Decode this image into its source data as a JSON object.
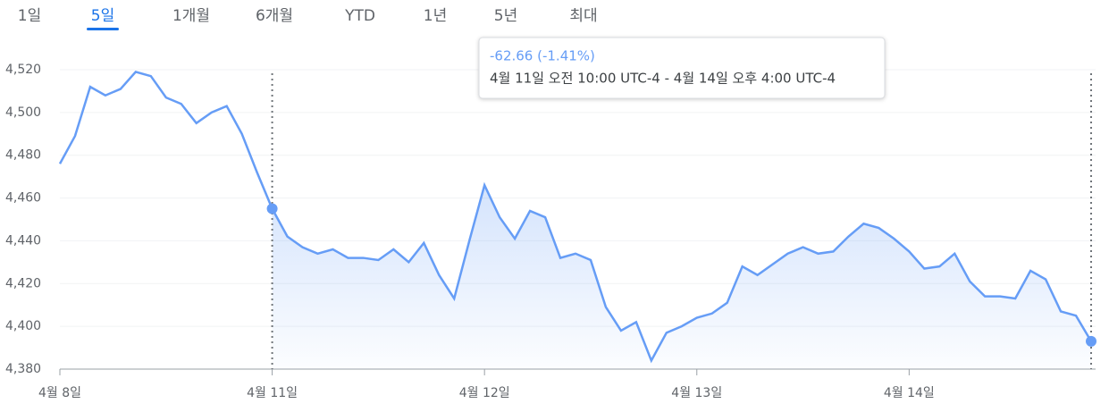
{
  "tabs": [
    "1일",
    "5일",
    "1개월",
    "6개월",
    "YTD",
    "1년",
    "5년",
    "최대"
  ],
  "selected_tab": 1,
  "chart_data": {
    "type": "line",
    "color": "#669df6",
    "annotation": {
      "change": "-62.66 (-1.41%)",
      "range": "4월 11일 오전 10:00 UTC-4 - 4월 14일 오후 4:00 UTC-4"
    },
    "highlight_range": [
      14,
      68
    ],
    "categories": [
      "4월 8일",
      null,
      null,
      null,
      null,
      null,
      null,
      null,
      null,
      null,
      null,
      null,
      null,
      null,
      "4월 11일",
      null,
      null,
      null,
      null,
      null,
      null,
      null,
      null,
      null,
      null,
      null,
      null,
      null,
      "4월 12일",
      null,
      null,
      null,
      null,
      null,
      null,
      null,
      null,
      null,
      null,
      null,
      null,
      null,
      "4월 13일",
      null,
      null,
      null,
      null,
      null,
      null,
      null,
      null,
      null,
      null,
      null,
      null,
      null,
      "4월 14일",
      null,
      null,
      null,
      null,
      null,
      null,
      null,
      null,
      null,
      null,
      null,
      null
    ],
    "values": [
      4476,
      4489,
      4512,
      4508,
      4511,
      4519,
      4517,
      4507,
      4504,
      4495,
      4500,
      4503,
      4490,
      4472,
      4455,
      4442,
      4437,
      4434,
      4436,
      4432,
      4432,
      4431,
      4436,
      4430,
      4439,
      4424,
      4413,
      4440,
      4466,
      4451,
      4441,
      4454,
      4451,
      4432,
      4434,
      4431,
      4409,
      4398,
      4402,
      4384,
      4397,
      4400,
      4404,
      4406,
      4411,
      4428,
      4424,
      4429,
      4434,
      4437,
      4434,
      4435,
      4442,
      4448,
      4446,
      4441,
      4435,
      4427,
      4428,
      4434,
      4421,
      4414,
      4414,
      4413,
      4426,
      4422,
      4407,
      4405,
      4393
    ],
    "ylim": [
      4380,
      4520
    ],
    "yticks": [
      {
        "value": 4380,
        "label": "4,380"
      },
      {
        "value": 4400,
        "label": "4,400"
      },
      {
        "value": 4420,
        "label": "4,420"
      },
      {
        "value": 4440,
        "label": "4,440"
      },
      {
        "value": 4460,
        "label": "4,460"
      },
      {
        "value": 4480,
        "label": "4,480"
      },
      {
        "value": 4500,
        "label": "4,500"
      },
      {
        "value": 4520,
        "label": "4,520"
      }
    ],
    "grid": true
  }
}
